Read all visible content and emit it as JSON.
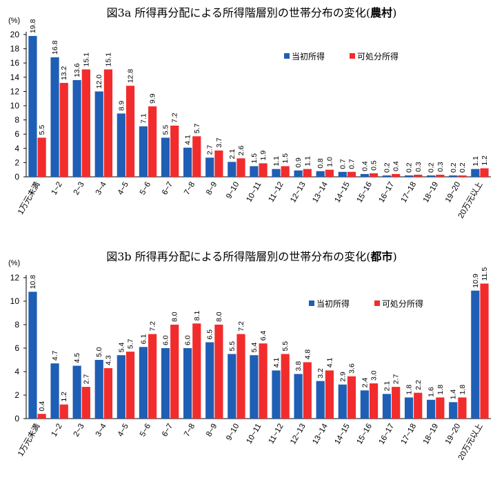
{
  "chart_data": [
    {
      "type": "bar",
      "title": "図3a 所得再分配による所得階層別の世帯分布の変化(",
      "title_bold": "農村",
      "title_end": ")",
      "unit": "(%)",
      "ylim": [
        0,
        20
      ],
      "ytick_step": 2,
      "categories": [
        "1万元未満",
        "1~2",
        "2~3",
        "3~4",
        "4~5",
        "5~6",
        "6~7",
        "7~8",
        "8~9",
        "9~10",
        "10~11",
        "11~12",
        "12~13",
        "13~14",
        "14~15",
        "15~16",
        "16~17",
        "17~18",
        "18~19",
        "19~20",
        "20万元以上"
      ],
      "series": [
        {
          "name": "当初所得",
          "color": "#1f5eb5",
          "values": [
            19.8,
            16.8,
            13.6,
            12.0,
            8.9,
            7.1,
            5.5,
            4.1,
            2.7,
            2.1,
            1.5,
            1.1,
            0.9,
            0.8,
            0.7,
            0.4,
            0.2,
            0.2,
            0.2,
            0.2,
            1.1
          ]
        },
        {
          "name": "可処分所得",
          "color": "#f22c2c",
          "values": [
            5.5,
            13.2,
            15.1,
            15.1,
            12.8,
            9.9,
            7.2,
            5.7,
            3.7,
            2.6,
            1.9,
            1.5,
            1.1,
            1.0,
            0.7,
            0.5,
            0.4,
            0.3,
            0.3,
            0.2,
            1.2
          ]
        }
      ],
      "legend": "right"
    },
    {
      "type": "bar",
      "title": "図3b 所得再分配による所得階層別の世帯分布の変化(",
      "title_bold": "都市",
      "title_end": ")",
      "unit": "(%)",
      "ylim": [
        0,
        12
      ],
      "ytick_step": 2,
      "categories": [
        "1万元未満",
        "1~2",
        "2~3",
        "3~4",
        "4~5",
        "5~6",
        "6~7",
        "7~8",
        "8~9",
        "9~10",
        "10~11",
        "11~12",
        "12~13",
        "13~14",
        "14~15",
        "15~16",
        "16~17",
        "17~18",
        "18~19",
        "19~20",
        "20万元以上"
      ],
      "series": [
        {
          "name": "当初所得",
          "color": "#1f5eb5",
          "values": [
            10.8,
            4.7,
            4.5,
            5.0,
            5.4,
            6.1,
            6.0,
            6.0,
            6.5,
            5.5,
            5.4,
            4.1,
            3.8,
            3.2,
            2.9,
            2.4,
            2.1,
            1.8,
            1.6,
            1.4,
            10.9
          ]
        },
        {
          "name": "可処分所得",
          "color": "#f22c2c",
          "values": [
            0.4,
            1.2,
            2.7,
            4.3,
            5.7,
            7.2,
            8.0,
            8.1,
            8.0,
            7.2,
            6.4,
            5.5,
            4.8,
            4.1,
            3.6,
            3.0,
            2.7,
            2.2,
            1.8,
            1.8,
            11.5
          ]
        }
      ],
      "legend": "right"
    }
  ]
}
